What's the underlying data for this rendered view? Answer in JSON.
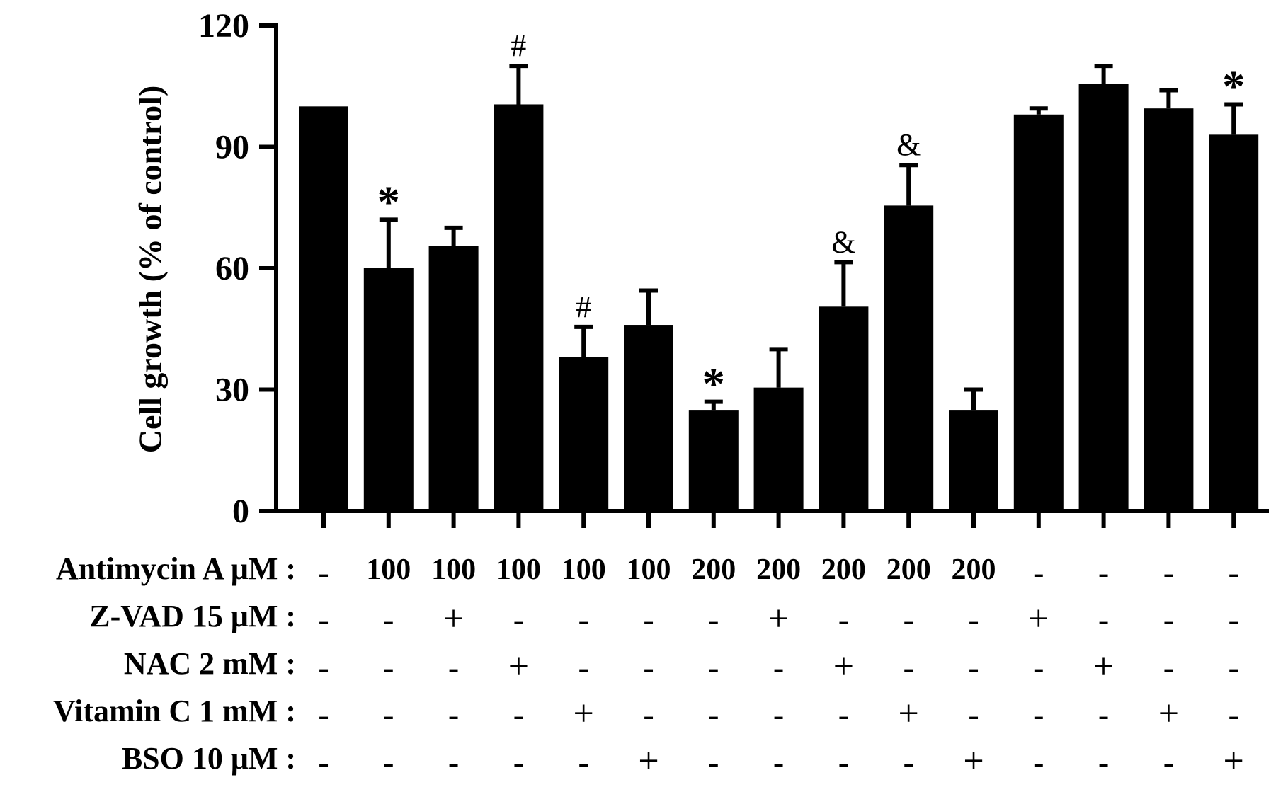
{
  "chart_data": {
    "type": "bar",
    "ylabel": "Cell growth (% of control)",
    "ylim": [
      0,
      120
    ],
    "yticks": [
      "0",
      "30",
      "60",
      "90",
      "120"
    ],
    "bar_color": "#000000",
    "values": [
      100,
      60,
      65.5,
      100.5,
      38,
      46,
      25,
      30.5,
      50.5,
      75.5,
      25,
      98,
      105.5,
      99.5,
      93
    ],
    "errors": [
      0,
      12,
      4.5,
      9.5,
      7.5,
      8.5,
      2,
      9.5,
      11,
      10,
      5,
      1.5,
      4.5,
      4.5,
      7.5
    ],
    "annotations": [
      "",
      "*",
      "",
      "#",
      "#",
      "",
      "*",
      "",
      "&",
      "&",
      "",
      "",
      "",
      "",
      "*"
    ],
    "treatments": [
      {
        "label": "Antimycin A μM :",
        "values": [
          "-",
          "100",
          "100",
          "100",
          "100",
          "100",
          "200",
          "200",
          "200",
          "200",
          "200",
          "-",
          "-",
          "-",
          "-"
        ]
      },
      {
        "label": "Z-VAD 15 μM :",
        "values": [
          "-",
          "-",
          "+",
          "-",
          "-",
          "-",
          "-",
          "+",
          "-",
          "-",
          "-",
          "+",
          "-",
          "-",
          "-"
        ]
      },
      {
        "label": "NAC 2 mM :",
        "values": [
          "-",
          "-",
          "-",
          "+",
          "-",
          "-",
          "-",
          "-",
          "+",
          "-",
          "-",
          "-",
          "+",
          "-",
          "-"
        ]
      },
      {
        "label": "Vitamin C 1 mM :",
        "values": [
          "-",
          "-",
          "-",
          "-",
          "+",
          "-",
          "-",
          "-",
          "-",
          "+",
          "-",
          "-",
          "-",
          "+",
          "-"
        ]
      },
      {
        "label": "BSO 10 μM :",
        "values": [
          "-",
          "-",
          "-",
          "-",
          "-",
          "+",
          "-",
          "-",
          "-",
          "-",
          "+",
          "-",
          "-",
          "-",
          "+"
        ]
      }
    ]
  }
}
